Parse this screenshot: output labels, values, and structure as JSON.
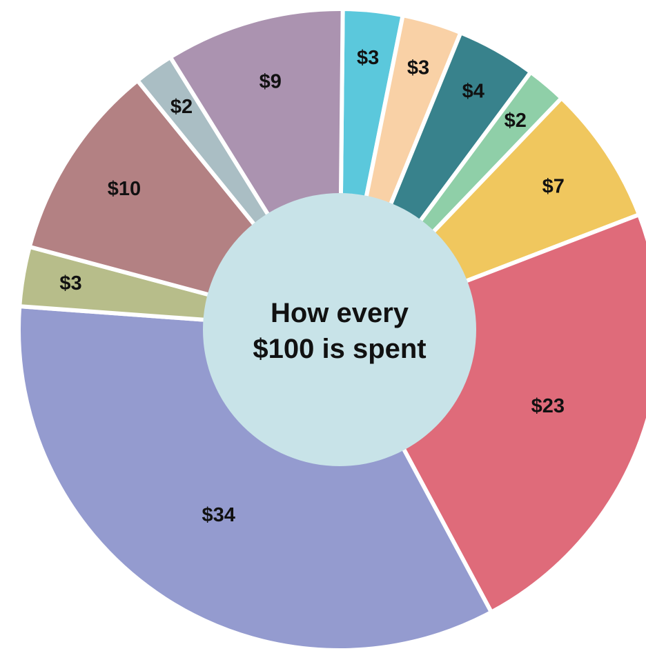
{
  "chart_data": {
    "type": "donut",
    "title": "How every $100 is spent",
    "values": [
      3,
      3,
      4,
      2,
      7,
      23,
      34,
      3,
      10,
      2,
      9
    ],
    "value_labels": [
      "$3",
      "$3",
      "$4",
      "$2",
      "$7",
      "$23",
      "$34",
      "$3",
      "$10",
      "$2",
      "$9"
    ],
    "colors": [
      "#5bc8dc",
      "#f9d1a6",
      "#38828c",
      "#8fcfa8",
      "#f0c75e",
      "#df6b7a",
      "#949bcf",
      "#b7bd8a",
      "#b38183",
      "#aabec4",
      "#ab93b0"
    ]
  }
}
